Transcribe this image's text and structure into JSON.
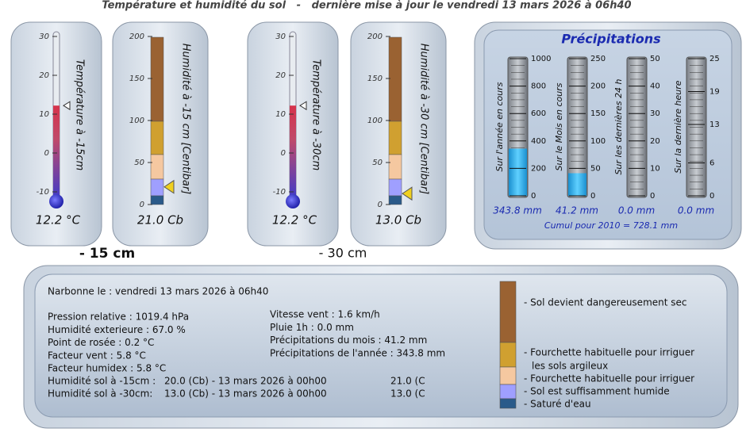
{
  "header": {
    "title": "Température et humidité du sol   -   dernière mise à jour le vendredi 13 mars 2026 à 06h40"
  },
  "gauges": [
    {
      "kind": "temperature",
      "label": "Température à -15cm",
      "ticks": [
        30,
        20,
        10,
        0,
        -10
      ],
      "value": 12.2,
      "value_label": "12.2 °C"
    },
    {
      "kind": "humidity",
      "label": "Humidité à -15 cm [Centibar]",
      "ticks": [
        200,
        150,
        100,
        50,
        0
      ],
      "value": 21,
      "value_label": "21.0 Cb"
    },
    {
      "kind": "temperature",
      "label": "Température à -30cm",
      "ticks": [
        30,
        20,
        10,
        0,
        -10
      ],
      "value": 12.2,
      "value_label": "12.2 °C"
    },
    {
      "kind": "humidity",
      "label": "Humidité à -30 cm [Centibar]",
      "ticks": [
        200,
        150,
        100,
        50,
        0
      ],
      "value": 13,
      "value_label": "13.0 Cb"
    }
  ],
  "depth_labels": [
    "- 15 cm",
    "- 30 cm"
  ],
  "precipitation": {
    "title": "Précipitations",
    "gauges": [
      {
        "label": "Sur l'année en cours",
        "ticks": [
          1000,
          800,
          600,
          400,
          200,
          0
        ],
        "value": 343.8,
        "value_label": "343.8 mm"
      },
      {
        "label": "Sur le Mois en cours",
        "ticks": [
          250,
          200,
          150,
          100,
          50,
          0
        ],
        "value": 41.2,
        "value_label": "41.2 mm"
      },
      {
        "label": "Sur les dernières 24 h",
        "ticks": [
          50,
          40,
          30,
          20,
          10,
          0
        ],
        "value": 0,
        "value_label": "0.0 mm"
      },
      {
        "label": "Sur la dernière heure",
        "ticks": [
          25,
          19,
          13,
          6,
          0
        ],
        "value": 0,
        "value_label": "0.0 mm"
      }
    ],
    "footer": "Cumul pour 2010 = 728.1 mm"
  },
  "summary": {
    "station": "Narbonne le : vendredi 13 mars 2026 à 06h40",
    "left": [
      "Pression relative : 1019.4 hPa",
      "Humidité exterieure : 67.0 %",
      "Point de rosée : 0.2 °C",
      "Facteur vent : 5.8 °C",
      "Facteur humidex : 5.8 °C"
    ],
    "right": [
      "Vitesse vent : 1.6 km/h",
      "Pluie 1h : 0.0 mm",
      "Précipitations du mois : 41.2 mm",
      "Précipitations de l'année : 343.8 mm"
    ],
    "soil": [
      [
        "Humidité sol à -15cm :",
        "20.0 (Cb) - 13 mars 2026 à 00h00",
        "21.0 (C"
      ],
      [
        "Humidité sol à -30cm:",
        "13.0 (Cb) - 13 mars 2026 à 00h00",
        "13.0 (C"
      ]
    ],
    "legend": [
      "- Sol devient dangereusement sec",
      "- Fourchette habituelle pour irriguer",
      "les sols argileux",
      "- Fourchette habituelle pour irriguer",
      "- Sol est suffisamment humide",
      "- Saturé d'eau"
    ]
  }
}
